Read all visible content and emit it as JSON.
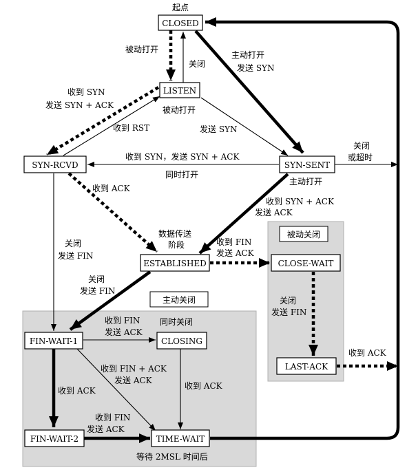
{
  "states": {
    "closed": "CLOSED",
    "listen": "LISTEN",
    "syn_rcvd": "SYN-RCVD",
    "syn_sent": "SYN-SENT",
    "established": "ESTABLISHED",
    "close_wait": "CLOSE-WAIT",
    "last_ack": "LAST-ACK",
    "fin_wait_1": "FIN-WAIT-1",
    "closing": "CLOSING",
    "fin_wait_2": "FIN-WAIT-2",
    "time_wait": "TIME-WAIT"
  },
  "regions": {
    "passive_close": "被动关闭",
    "active_close": "主动关闭"
  },
  "labels": {
    "start": "起点",
    "passive_open_1": "被动打开",
    "close_listen": "关闭",
    "active_open_1": "主动打开",
    "send_syn_1": "发送 SYN",
    "recv_syn": "收到 SYN",
    "send_syn_ack": "发送 SYN + ACK",
    "passive_open_2": "被动打开",
    "recv_rst": "收到 RST",
    "send_syn_2": "发送 SYN",
    "recv_syn_send_syn_ack": "收到 SYN，发送 SYN + ACK",
    "simultaneous_open": "同时打开",
    "close_or_timeout_1": "关闭",
    "close_or_timeout_2": "或超时",
    "active_open_2": "主动打开",
    "recv_ack_1": "收到 ACK",
    "recv_syn_ack": "收到 SYN + ACK",
    "send_ack_1": "发送 ACK",
    "data_transfer_1": "数据传送",
    "data_transfer_2": "阶段",
    "close_1": "关闭",
    "send_fin_1": "发送 FIN",
    "recv_fin_1": "收到 FIN",
    "send_ack_2": "发送 ACK",
    "close_2": "关闭",
    "send_fin_2": "发送 FIN",
    "close_3": "关闭",
    "send_fin_3": "发送 FIN",
    "recv_ack_2": "收到 ACK",
    "recv_fin_2": "收到 FIN",
    "send_ack_3": "发送 ACK",
    "simultaneous_close": "同时关闭",
    "recv_fin_ack": "收到 FIN + ACK",
    "send_ack_4": "发送 ACK",
    "recv_ack_3": "收到 ACK",
    "recv_ack_4": "收到 ACK",
    "recv_fin_3": "收到 FIN",
    "send_ack_5": "发送 ACK",
    "wait_2msl": "等待 2MSL 时间后"
  }
}
